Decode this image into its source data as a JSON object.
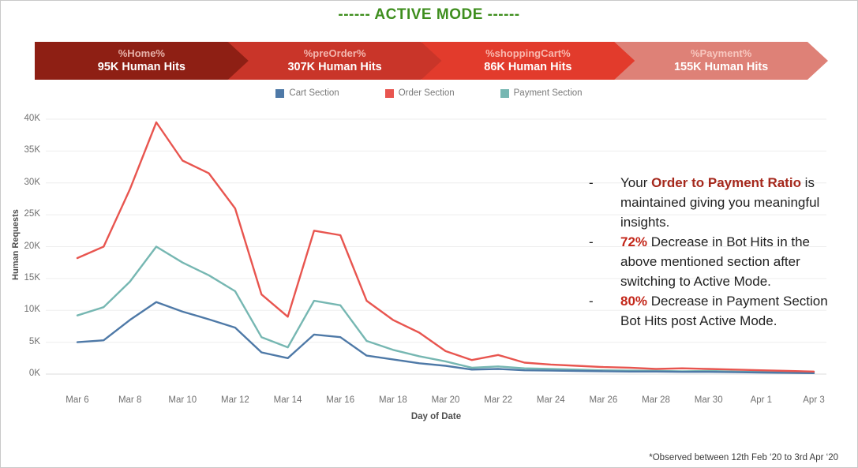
{
  "title": {
    "text": "------ ACTIVE MODE ------",
    "color": "#3E8E1E"
  },
  "funnel": {
    "segments": [
      {
        "system_label": "%Home%",
        "hits_label": "95K Human Hits",
        "color": "#8E1F14"
      },
      {
        "system_label": "%preOrder%",
        "hits_label": "307K Human Hits",
        "color": "#C93529"
      },
      {
        "system_label": "%shoppingCart%",
        "hits_label": "86K Human Hits",
        "color": "#E23B2C"
      },
      {
        "system_label": "%Payment%",
        "hits_label": "155K Human Hits",
        "color": "#DE8177"
      }
    ]
  },
  "chart_data": {
    "type": "line",
    "title": "",
    "xlabel": "Day of Date",
    "ylabel": "Human Requests",
    "unit": "thousands of human requests (K)",
    "ylim_k": [
      0,
      40
    ],
    "ytick_step_k": 5,
    "ytick_labels": [
      "0K",
      "5K",
      "10K",
      "15K",
      "20K",
      "25K",
      "30K",
      "35K",
      "40K"
    ],
    "grid": true,
    "legend_position": "top",
    "x": [
      "Mar 6",
      "Mar 7",
      "Mar 8",
      "Mar 9",
      "Mar 10",
      "Mar 11",
      "Mar 12",
      "Mar 13",
      "Mar 14",
      "Mar 15",
      "Mar 16",
      "Mar 17",
      "Mar 18",
      "Mar 19",
      "Mar 20",
      "Mar 21",
      "Mar 22",
      "Mar 23",
      "Mar 24",
      "Mar 25",
      "Mar 26",
      "Mar 27",
      "Mar 28",
      "Mar 29",
      "Mar 30",
      "Mar 31",
      "Apr 1",
      "Apr 2",
      "Apr 3"
    ],
    "x_tick_every": 2,
    "series": [
      {
        "name": "Cart Section",
        "color": "#4E79A7",
        "values_k": [
          5.0,
          5.3,
          8.5,
          11.3,
          9.8,
          8.6,
          7.3,
          3.4,
          2.5,
          6.2,
          5.8,
          2.9,
          2.3,
          1.7,
          1.3,
          0.7,
          0.8,
          0.6,
          0.55,
          0.5,
          0.45,
          0.4,
          0.4,
          0.35,
          0.35,
          0.3,
          0.25,
          0.2,
          0.15
        ]
      },
      {
        "name": "Order Section",
        "color": "#E8554F",
        "values_k": [
          18.2,
          20.0,
          29.0,
          39.5,
          33.5,
          31.5,
          26.0,
          12.5,
          9.0,
          22.5,
          21.8,
          11.5,
          8.5,
          6.5,
          3.6,
          2.2,
          3.0,
          1.8,
          1.5,
          1.3,
          1.1,
          1.0,
          0.8,
          0.9,
          0.8,
          0.7,
          0.6,
          0.5,
          0.4
        ]
      },
      {
        "name": "Payment Section",
        "color": "#76B7B2",
        "values_k": [
          9.2,
          10.5,
          14.5,
          20.0,
          17.5,
          15.5,
          13.0,
          5.8,
          4.2,
          11.5,
          10.8,
          5.2,
          3.8,
          2.8,
          2.0,
          1.0,
          1.2,
          0.9,
          0.8,
          0.7,
          0.6,
          0.55,
          0.5,
          0.45,
          0.5,
          0.4,
          0.35,
          0.3,
          0.2
        ]
      }
    ]
  },
  "insights": {
    "items": [
      {
        "parts": [
          {
            "text": "Your "
          },
          {
            "text": "Order to Payment Ratio",
            "bold": true,
            "color": "#A5281C"
          },
          {
            "text": " is maintained giving you meaningful insights."
          }
        ]
      },
      {
        "parts": [
          {
            "text": "72%",
            "bold": true,
            "color": "#C3271A"
          },
          {
            "text": " Decrease in Bot Hits in the above mentioned section after switching to Active Mode."
          }
        ]
      },
      {
        "parts": [
          {
            "text": "80%",
            "bold": true,
            "color": "#C3271A"
          },
          {
            "text": " Decrease in Payment Section Bot Hits post Active Mode."
          }
        ]
      }
    ]
  },
  "footnote": "*Observed between 12th Feb ‘20 to 3rd Apr ‘20"
}
